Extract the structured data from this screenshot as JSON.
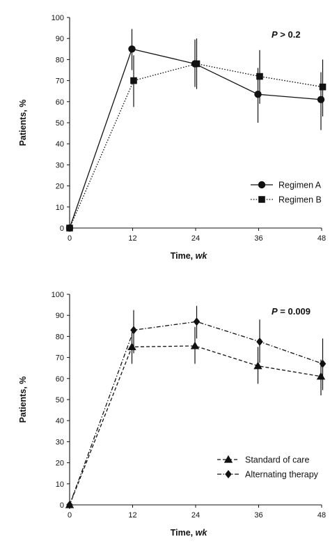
{
  "chart_data": [
    {
      "type": "line",
      "annotation": "P > 0.2",
      "annotation_var": "P",
      "annotation_rest": " > 0.2",
      "xlabel_main": "Time, ",
      "xlabel_unit": "wk",
      "ylabel": "Patients, %",
      "x_ticks": [
        0,
        12,
        24,
        36,
        48
      ],
      "y_ticks": [
        0,
        10,
        20,
        30,
        40,
        50,
        60,
        70,
        80,
        90,
        100
      ],
      "xlim": [
        0,
        48
      ],
      "ylim": [
        0,
        100
      ],
      "grid": false,
      "legend_position": "bottom-right",
      "series": [
        {
          "name": "Regimen A",
          "marker": "circle",
          "line": "solid",
          "x": [
            0,
            12,
            24,
            36,
            48
          ],
          "y": [
            0,
            85,
            78,
            63.5,
            61
          ],
          "err_low": [
            0,
            75,
            67,
            50,
            46.5
          ],
          "err_high": [
            0,
            94.5,
            89.5,
            76,
            74
          ]
        },
        {
          "name": "Regimen B",
          "marker": "square",
          "line": "dotted",
          "x": [
            0,
            12,
            24,
            36,
            48
          ],
          "y": [
            0,
            70,
            78,
            72,
            67
          ],
          "err_low": [
            0,
            57.5,
            66,
            59,
            53
          ],
          "err_high": [
            0,
            82,
            90,
            84.5,
            80
          ]
        }
      ]
    },
    {
      "type": "line",
      "annotation": "P = 0.009",
      "annotation_var": "P",
      "annotation_rest": " = 0.009",
      "xlabel_main": "Time, ",
      "xlabel_unit": "wk",
      "ylabel": "Patients, %",
      "x_ticks": [
        0,
        12,
        24,
        36,
        48
      ],
      "y_ticks": [
        0,
        10,
        20,
        30,
        40,
        50,
        60,
        70,
        80,
        90,
        100
      ],
      "xlim": [
        0,
        48
      ],
      "ylim": [
        0,
        100
      ],
      "grid": false,
      "legend_position": "bottom-right",
      "series": [
        {
          "name": "Standard of care",
          "marker": "triangle",
          "line": "dashed",
          "x": [
            0,
            12,
            24,
            36,
            48
          ],
          "y": [
            0,
            75,
            75.5,
            66,
            61
          ],
          "err_low": [
            0,
            67,
            67,
            57.5,
            52
          ],
          "err_high": [
            0,
            82,
            84.5,
            75,
            69
          ]
        },
        {
          "name": "Alternating therapy",
          "marker": "diamond",
          "line": "dashdot",
          "x": [
            0,
            12,
            24,
            36,
            48
          ],
          "y": [
            0,
            83,
            87,
            77.5,
            67
          ],
          "err_low": [
            0,
            72,
            79,
            67.5,
            54.5
          ],
          "err_high": [
            0,
            92.5,
            94.5,
            88,
            79
          ]
        }
      ]
    }
  ]
}
